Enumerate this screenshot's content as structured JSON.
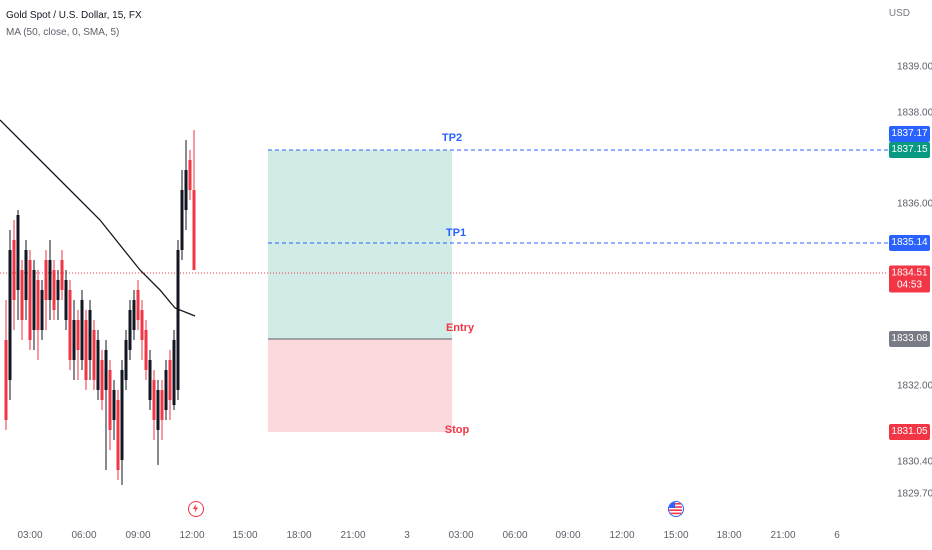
{
  "header": {
    "title": "Gold Spot / U.S. Dollar, 15, FX",
    "indicator": "MA (50, close, 0, SMA, 5)"
  },
  "price_axis": {
    "currency": "USD",
    "labels": [
      "1839.00",
      "1838.00",
      "1836.00",
      "1832.00",
      "1830.40",
      "1829.70"
    ]
  },
  "time_axis": {
    "labels": [
      "03:00",
      "06:00",
      "09:00",
      "12:00",
      "15:00",
      "18:00",
      "21:00",
      "3",
      "03:00",
      "06:00",
      "09:00",
      "12:00",
      "15:00",
      "18:00",
      "21:00",
      "6"
    ]
  },
  "tags": {
    "tp2_label": "1837.17",
    "current_high_label": "1837.15",
    "tp1_label": "1835.14",
    "last_price": "1834.51",
    "countdown": "04:53",
    "entry_label": "1833.08",
    "stop_label": "1831.05"
  },
  "position": {
    "tp2": "TP2",
    "tp1": "TP1",
    "entry": "Entry",
    "stop": "Stop"
  },
  "colors": {
    "up": "#089981",
    "down": "#f23645",
    "tp_blue": "#2962ff",
    "profit_zone": "#d1ebe6",
    "loss_zone": "#fcd9dc",
    "entry_gray": "#787b86"
  },
  "icons": {
    "event1": "lightning-event-icon",
    "event2": "us-flag-event-icon"
  }
}
